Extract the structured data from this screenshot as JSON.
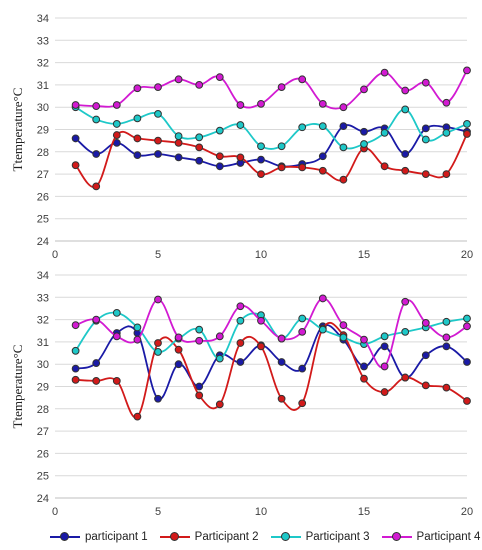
{
  "chart_data": [
    {
      "type": "line",
      "ylabel": "Ttemperature°C",
      "xlim": [
        0,
        20
      ],
      "ylim": [
        24,
        34
      ],
      "xticks": [
        0,
        5,
        10,
        15,
        20
      ],
      "yticks": [
        24,
        25,
        26,
        27,
        28,
        29,
        30,
        31,
        32,
        33,
        34
      ],
      "grid": true,
      "x": [
        1,
        2,
        3,
        4,
        5,
        6,
        7,
        8,
        9,
        10,
        11,
        12,
        13,
        14,
        15,
        16,
        17,
        18,
        19,
        20
      ],
      "series": [
        {
          "name": "participant 1",
          "color": "#1a1aa6",
          "values": [
            28.6,
            27.9,
            28.4,
            27.85,
            27.9,
            27.75,
            27.6,
            27.35,
            27.5,
            27.65,
            27.35,
            27.45,
            27.8,
            29.15,
            28.9,
            29.05,
            27.9,
            29.05,
            29.1,
            28.9
          ]
        },
        {
          "name": "Participant 2",
          "color": "#d21a1a",
          "values": [
            27.4,
            26.45,
            28.75,
            28.6,
            28.5,
            28.4,
            28.2,
            27.8,
            27.75,
            27.0,
            27.3,
            27.3,
            27.15,
            26.75,
            28.15,
            27.35,
            27.15,
            27.0,
            27.0,
            28.8
          ]
        },
        {
          "name": "Participant 3",
          "color": "#1ec8c8",
          "values": [
            30.0,
            29.45,
            29.25,
            29.5,
            29.7,
            28.7,
            28.65,
            28.95,
            29.2,
            28.25,
            28.25,
            29.1,
            29.15,
            28.2,
            28.35,
            28.85,
            29.9,
            28.55,
            28.85,
            29.25
          ]
        },
        {
          "name": "Participant 4",
          "color": "#d21ad2",
          "values": [
            30.1,
            30.05,
            30.1,
            30.85,
            30.9,
            31.25,
            31.0,
            31.35,
            30.1,
            30.15,
            30.9,
            31.25,
            30.15,
            30.0,
            30.8,
            31.55,
            30.75,
            31.1,
            30.2,
            31.65
          ]
        }
      ]
    },
    {
      "type": "line",
      "ylabel": "Ttemperature°C",
      "xlim": [
        0,
        20
      ],
      "ylim": [
        24,
        34
      ],
      "xticks": [
        0,
        5,
        10,
        15,
        20
      ],
      "yticks": [
        24,
        25,
        26,
        27,
        28,
        29,
        30,
        31,
        32,
        33,
        34
      ],
      "grid": true,
      "x": [
        1,
        2,
        3,
        4,
        5,
        6,
        7,
        8,
        9,
        10,
        11,
        12,
        13,
        14,
        15,
        16,
        17,
        18,
        19,
        20
      ],
      "series": [
        {
          "name": "participant 1",
          "color": "#1a1aa6",
          "values": [
            29.8,
            30.05,
            31.4,
            31.4,
            28.45,
            30.0,
            29.0,
            30.4,
            30.1,
            30.85,
            30.1,
            29.8,
            31.7,
            31.1,
            29.9,
            30.8,
            29.4,
            30.4,
            30.8,
            30.1
          ]
        },
        {
          "name": "Participant 2",
          "color": "#d21a1a",
          "values": [
            29.3,
            29.25,
            29.25,
            27.65,
            30.95,
            30.65,
            28.6,
            28.2,
            30.95,
            30.8,
            28.45,
            28.25,
            31.6,
            31.3,
            29.35,
            28.75,
            29.4,
            29.05,
            28.95,
            28.35
          ]
        },
        {
          "name": "Participant 3",
          "color": "#1ec8c8",
          "values": [
            30.6,
            31.95,
            32.3,
            31.65,
            30.55,
            31.15,
            31.55,
            30.25,
            31.95,
            32.2,
            31.15,
            32.05,
            31.55,
            31.2,
            30.9,
            31.25,
            31.45,
            31.65,
            31.9,
            32.05
          ]
        },
        {
          "name": "Participant 4",
          "color": "#d21ad2",
          "values": [
            31.75,
            32.0,
            31.25,
            31.1,
            32.9,
            31.2,
            31.05,
            31.25,
            32.6,
            31.95,
            31.15,
            31.45,
            32.95,
            31.75,
            31.1,
            29.9,
            32.8,
            31.85,
            31.2,
            31.7
          ]
        }
      ]
    }
  ],
  "legend": [
    {
      "label": "participant 1",
      "color": "#1a1aa6"
    },
    {
      "label": "Participant 2",
      "color": "#d21a1a"
    },
    {
      "label": "Participant 3",
      "color": "#1ec8c8"
    },
    {
      "label": "Participant 4",
      "color": "#d21ad2"
    }
  ]
}
